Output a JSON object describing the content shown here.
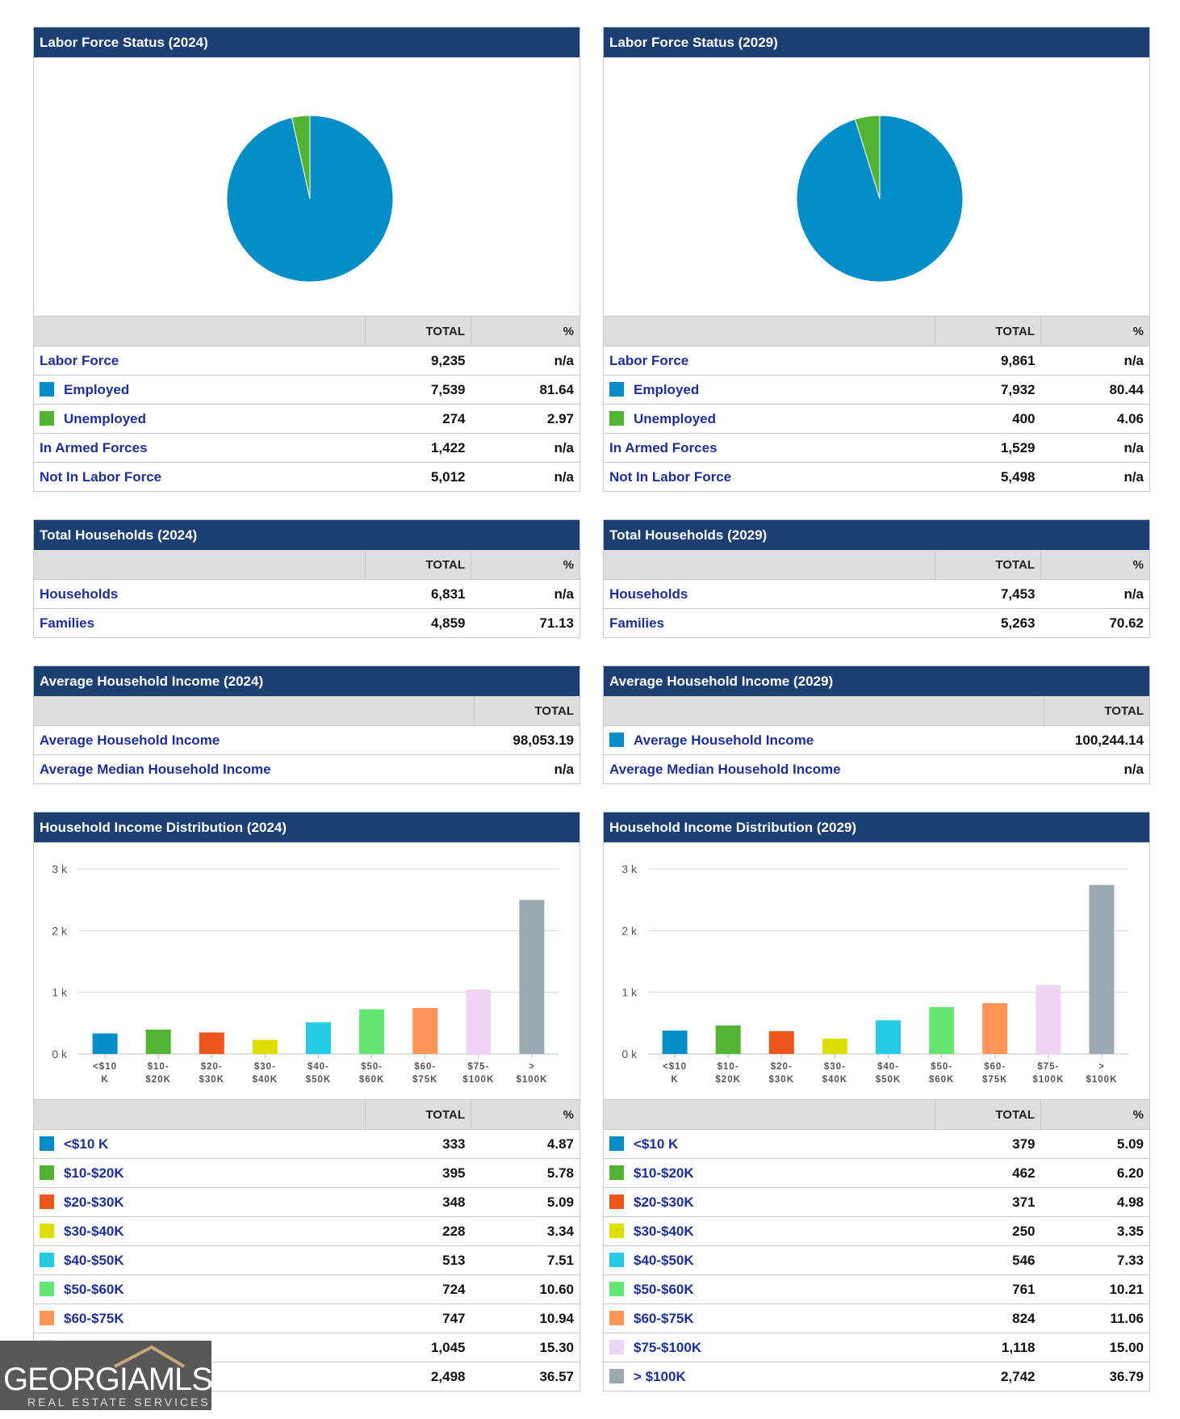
{
  "left": {
    "labor": {
      "title": "Labor Force Status (2024)",
      "headers": {
        "total": "TOTAL",
        "pct": "%"
      },
      "rows": [
        {
          "label": "Labor Force",
          "total": "9,235",
          "pct": "n/a"
        },
        {
          "label": "Employed",
          "total": "7,539",
          "pct": "81.64",
          "color": "#058dc7"
        },
        {
          "label": "Unemployed",
          "total": "274",
          "pct": "2.97",
          "color": "#50b432"
        },
        {
          "label": "In Armed Forces",
          "total": "1,422",
          "pct": "n/a"
        },
        {
          "label": "Not In Labor Force",
          "total": "5,012",
          "pct": "n/a"
        }
      ]
    },
    "households": {
      "title": "Total Households (2024)",
      "headers": {
        "total": "TOTAL",
        "pct": "%"
      },
      "rows": [
        {
          "label": "Households",
          "total": "6,831",
          "pct": "n/a"
        },
        {
          "label": "Families",
          "total": "4,859",
          "pct": "71.13"
        }
      ]
    },
    "income": {
      "title": "Average Household Income (2024)",
      "headers": {
        "total": "TOTAL"
      },
      "rows": [
        {
          "label": "Average Household Income",
          "total": "98,053.19"
        },
        {
          "label": "Average Median Household Income",
          "total": "n/a"
        }
      ]
    },
    "distribution": {
      "title": "Household Income Distribution (2024)",
      "headers": {
        "total": "TOTAL",
        "pct": "%"
      },
      "rows": [
        {
          "label": "<$10 K",
          "total": "333",
          "pct": "4.87",
          "color": "#058dc7"
        },
        {
          "label": "$10-$20K",
          "total": "395",
          "pct": "5.78",
          "color": "#50b432"
        },
        {
          "label": "$20-$30K",
          "total": "348",
          "pct": "5.09",
          "color": "#ed561b"
        },
        {
          "label": "$30-$40K",
          "total": "228",
          "pct": "3.34",
          "color": "#dddf00"
        },
        {
          "label": "$40-$50K",
          "total": "513",
          "pct": "7.51",
          "color": "#24cbe5"
        },
        {
          "label": "$50-$60K",
          "total": "724",
          "pct": "10.60",
          "color": "#64e572"
        },
        {
          "label": "$60-$75K",
          "total": "747",
          "pct": "10.94",
          "color": "#ff9655"
        },
        {
          "label": "",
          "total": "1,045",
          "pct": "15.30",
          "color": "#f0d4f5"
        },
        {
          "label": "",
          "total": "2,498",
          "pct": "36.57",
          "color": "#9aa8b1"
        }
      ]
    }
  },
  "right": {
    "labor": {
      "title": "Labor Force Status (2029)",
      "headers": {
        "total": "TOTAL",
        "pct": "%"
      },
      "rows": [
        {
          "label": "Labor Force",
          "total": "9,861",
          "pct": "n/a"
        },
        {
          "label": "Employed",
          "total": "7,932",
          "pct": "80.44",
          "color": "#058dc7"
        },
        {
          "label": "Unemployed",
          "total": "400",
          "pct": "4.06",
          "color": "#50b432"
        },
        {
          "label": "In Armed Forces",
          "total": "1,529",
          "pct": "n/a"
        },
        {
          "label": "Not In Labor Force",
          "total": "5,498",
          "pct": "n/a"
        }
      ]
    },
    "households": {
      "title": "Total Households (2029)",
      "headers": {
        "total": "TOTAL",
        "pct": "%"
      },
      "rows": [
        {
          "label": "Households",
          "total": "7,453",
          "pct": "n/a"
        },
        {
          "label": "Families",
          "total": "5,263",
          "pct": "70.62"
        }
      ]
    },
    "income": {
      "title": "Average Household Income (2029)",
      "headers": {
        "total": "TOTAL"
      },
      "rows": [
        {
          "label": "Average Household Income",
          "total": "100,244.14",
          "color": "#058dc7"
        },
        {
          "label": "Average Median Household Income",
          "total": "n/a"
        }
      ]
    },
    "distribution": {
      "title": "Household Income Distribution (2029)",
      "headers": {
        "total": "TOTAL",
        "pct": "%"
      },
      "rows": [
        {
          "label": "<$10 K",
          "total": "379",
          "pct": "5.09",
          "color": "#058dc7"
        },
        {
          "label": "$10-$20K",
          "total": "462",
          "pct": "6.20",
          "color": "#50b432"
        },
        {
          "label": "$20-$30K",
          "total": "371",
          "pct": "4.98",
          "color": "#ed561b"
        },
        {
          "label": "$30-$40K",
          "total": "250",
          "pct": "3.35",
          "color": "#dddf00"
        },
        {
          "label": "$40-$50K",
          "total": "546",
          "pct": "7.33",
          "color": "#24cbe5"
        },
        {
          "label": "$50-$60K",
          "total": "761",
          "pct": "10.21",
          "color": "#64e572"
        },
        {
          "label": "$60-$75K",
          "total": "824",
          "pct": "11.06",
          "color": "#ff9655"
        },
        {
          "label": "$75-$100K",
          "total": "1,118",
          "pct": "15.00",
          "color": "#f0d4f5"
        },
        {
          "label": "> $100K",
          "total": "2,742",
          "pct": "36.79",
          "color": "#9aa8b1"
        }
      ]
    }
  },
  "logo": {
    "word": "GEORGIAMLS",
    "sub": "REAL ESTATE SERVICES"
  },
  "chart_data": [
    {
      "type": "pie",
      "title": "Labor Force Status (2024)",
      "categories": [
        "Employed",
        "Unemployed"
      ],
      "values": [
        7539,
        274
      ],
      "colors": [
        "#058dc7",
        "#50b432"
      ]
    },
    {
      "type": "pie",
      "title": "Labor Force Status (2029)",
      "categories": [
        "Employed",
        "Unemployed"
      ],
      "values": [
        7932,
        400
      ],
      "colors": [
        "#058dc7",
        "#50b432"
      ]
    },
    {
      "type": "bar",
      "title": "Household Income Distribution (2024)",
      "categories": [
        "<$10 K",
        "$10-$20K",
        "$20-$30K",
        "$30-$40K",
        "$40-$50K",
        "$50-$60K",
        "$60-$75K",
        "$75-$100K",
        "> $100K"
      ],
      "tick_labels": [
        [
          "<$10",
          "K"
        ],
        [
          "$10-",
          "$20K"
        ],
        [
          "$20-",
          "$30K"
        ],
        [
          "$30-",
          "$40K"
        ],
        [
          "$40-",
          "$50K"
        ],
        [
          "$50-",
          "$60K"
        ],
        [
          "$60-",
          "$75K"
        ],
        [
          "$75-",
          "$100K"
        ],
        [
          ">",
          "$100K"
        ]
      ],
      "values": [
        333,
        395,
        348,
        228,
        513,
        724,
        747,
        1045,
        2498
      ],
      "colors": [
        "#058dc7",
        "#50b432",
        "#ed561b",
        "#dddf00",
        "#24cbe5",
        "#64e572",
        "#ff9655",
        "#f0d4f5",
        "#9aa8b1"
      ],
      "ylim": [
        0,
        3000
      ],
      "yticks": [
        0,
        1000,
        2000,
        3000
      ],
      "ytick_labels": [
        "0 k",
        "1 k",
        "2 k",
        "3 k"
      ],
      "grid": true
    },
    {
      "type": "bar",
      "title": "Household Income Distribution (2029)",
      "categories": [
        "<$10 K",
        "$10-$20K",
        "$20-$30K",
        "$30-$40K",
        "$40-$50K",
        "$50-$60K",
        "$60-$75K",
        "$75-$100K",
        "> $100K"
      ],
      "tick_labels": [
        [
          "<$10",
          "K"
        ],
        [
          "$10-",
          "$20K"
        ],
        [
          "$20-",
          "$30K"
        ],
        [
          "$30-",
          "$40K"
        ],
        [
          "$40-",
          "$50K"
        ],
        [
          "$50-",
          "$60K"
        ],
        [
          "$60-",
          "$75K"
        ],
        [
          "$75-",
          "$100K"
        ],
        [
          ">",
          "$100K"
        ]
      ],
      "values": [
        379,
        462,
        371,
        250,
        546,
        761,
        824,
        1118,
        2742
      ],
      "colors": [
        "#058dc7",
        "#50b432",
        "#ed561b",
        "#dddf00",
        "#24cbe5",
        "#64e572",
        "#ff9655",
        "#f0d4f5",
        "#9aa8b1"
      ],
      "ylim": [
        0,
        3000
      ],
      "yticks": [
        0,
        1000,
        2000,
        3000
      ],
      "ytick_labels": [
        "0 k",
        "1 k",
        "2 k",
        "3 k"
      ],
      "grid": true
    }
  ]
}
